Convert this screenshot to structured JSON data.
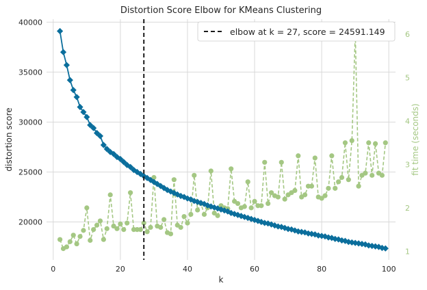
{
  "chart_data": {
    "type": "line",
    "title": "Distortion Score Elbow for KMeans Clustering",
    "xlabel": "k",
    "ylabel": "distortion score",
    "y2label": "fit time (seconds)",
    "xlim": [
      -2,
      102
    ],
    "ylim": [
      16200,
      40300
    ],
    "y2lim": [
      0.8,
      6.35
    ],
    "xticks": [
      0,
      20,
      40,
      60,
      80,
      100
    ],
    "yticks": [
      20000,
      25000,
      30000,
      35000,
      40000
    ],
    "y2ticks": [
      1,
      2,
      3,
      4,
      5,
      6
    ],
    "grid": true,
    "legend": {
      "placement": "top-right",
      "label": "elbow at k = 27, score = 24591.149"
    },
    "elbow": {
      "k": 27,
      "score": 24591.149
    },
    "colors": {
      "distortion": "#0b6e9c",
      "fit_time": "#a4c783",
      "elbow_line": "#1a1a1a",
      "grid": "#d9d9d9"
    },
    "series": [
      {
        "name": "distortion score",
        "axis": "left",
        "x": [
          2,
          3,
          4,
          5,
          6,
          7,
          8,
          9,
          10,
          11,
          12,
          13,
          14,
          15,
          16,
          17,
          18,
          19,
          20,
          21,
          22,
          23,
          24,
          25,
          26,
          27,
          28,
          29,
          30,
          31,
          32,
          33,
          34,
          35,
          36,
          37,
          38,
          39,
          40,
          41,
          42,
          43,
          44,
          45,
          46,
          47,
          48,
          49,
          50,
          51,
          52,
          53,
          54,
          55,
          56,
          57,
          58,
          59,
          60,
          61,
          62,
          63,
          64,
          65,
          66,
          67,
          68,
          69,
          70,
          71,
          72,
          73,
          74,
          75,
          76,
          77,
          78,
          79,
          80,
          81,
          82,
          83,
          84,
          85,
          86,
          87,
          88,
          89,
          90,
          91,
          92,
          93,
          94,
          95,
          96,
          97,
          98,
          99
        ],
        "values": [
          39100,
          37000,
          35700,
          34200,
          33200,
          32500,
          31500,
          31000,
          30500,
          29700,
          29400,
          28900,
          28600,
          27700,
          27300,
          27000,
          26800,
          26500,
          26300,
          26000,
          25700,
          25500,
          25200,
          25000,
          24800,
          24591,
          24400,
          24200,
          24000,
          23800,
          23600,
          23400,
          23200,
          23050,
          22900,
          22750,
          22600,
          22500,
          22350,
          22250,
          22100,
          22000,
          21900,
          21800,
          21650,
          21550,
          21450,
          21350,
          21250,
          21150,
          21050,
          20900,
          20800,
          20700,
          20600,
          20500,
          20400,
          20300,
          20200,
          20100,
          20000,
          19900,
          19850,
          19750,
          19650,
          19550,
          19500,
          19400,
          19300,
          19250,
          19150,
          19050,
          19000,
          18950,
          18850,
          18800,
          18750,
          18650,
          18600,
          18550,
          18450,
          18400,
          18300,
          18250,
          18150,
          18100,
          18000,
          17950,
          17900,
          17850,
          17800,
          17750,
          17650,
          17600,
          17550,
          17500,
          17400,
          17350
        ]
      },
      {
        "name": "fit time (seconds)",
        "axis": "right",
        "x": [
          2,
          3,
          4,
          5,
          6,
          7,
          8,
          9,
          10,
          11,
          12,
          13,
          14,
          15,
          16,
          17,
          18,
          19,
          20,
          21,
          22,
          23,
          24,
          25,
          26,
          27,
          28,
          29,
          30,
          31,
          32,
          33,
          34,
          35,
          36,
          37,
          38,
          39,
          40,
          41,
          42,
          43,
          44,
          45,
          46,
          47,
          48,
          49,
          50,
          51,
          52,
          53,
          54,
          55,
          56,
          57,
          58,
          59,
          60,
          61,
          62,
          63,
          64,
          65,
          66,
          67,
          68,
          69,
          70,
          71,
          72,
          73,
          74,
          75,
          76,
          77,
          78,
          79,
          80,
          81,
          82,
          83,
          84,
          85,
          86,
          87,
          88,
          89,
          90,
          91,
          92,
          93,
          94,
          95,
          96,
          97,
          98,
          99
        ],
        "values": [
          1.27,
          1.06,
          1.1,
          1.22,
          1.37,
          1.17,
          1.34,
          1.48,
          2.0,
          1.25,
          1.5,
          1.6,
          1.7,
          1.27,
          1.52,
          2.3,
          1.58,
          1.52,
          1.63,
          1.5,
          1.65,
          2.35,
          1.5,
          1.5,
          1.5,
          1.65,
          1.45,
          1.55,
          2.7,
          1.58,
          1.55,
          1.73,
          1.43,
          1.4,
          2.65,
          1.6,
          1.55,
          1.8,
          1.65,
          1.85,
          2.75,
          1.95,
          2.1,
          1.85,
          2.0,
          2.85,
          1.88,
          1.82,
          2.05,
          2.0,
          1.98,
          2.9,
          2.15,
          2.1,
          2.0,
          2.03,
          2.6,
          2.0,
          2.15,
          2.05,
          2.05,
          3.05,
          2.1,
          2.35,
          2.28,
          2.25,
          3.05,
          2.2,
          2.3,
          2.35,
          2.4,
          3.2,
          2.25,
          2.3,
          2.5,
          2.5,
          3.15,
          2.25,
          2.22,
          2.28,
          2.45,
          3.2,
          2.45,
          2.6,
          2.7,
          3.5,
          2.65,
          3.55,
          6.05,
          2.5,
          2.75,
          2.8,
          3.5,
          2.75,
          3.48,
          2.8,
          2.75,
          3.5
        ]
      }
    ]
  }
}
